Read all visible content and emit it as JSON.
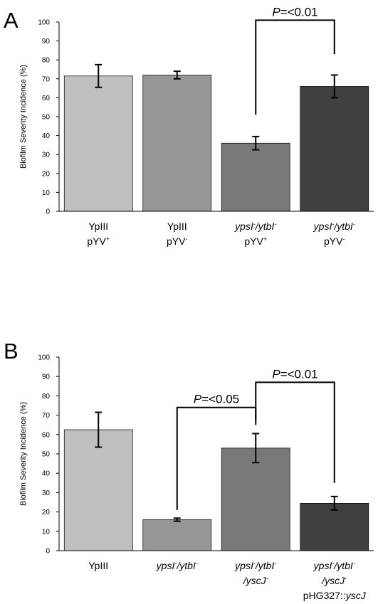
{
  "chart_data": [
    {
      "panel_label": "A",
      "type": "bar",
      "ylabel": "Biofilm Severity Incidence (%)",
      "ylim": [
        0,
        100
      ],
      "yticks": [
        0,
        10,
        20,
        30,
        40,
        50,
        60,
        70,
        80,
        90,
        100
      ],
      "grid": false,
      "categories": [
        {
          "lines": [
            [
              {
                "t": "YpIII"
              }
            ],
            [
              {
                "t": "pYV"
              },
              {
                "t": "+",
                "sup": true
              }
            ]
          ]
        },
        {
          "lines": [
            [
              {
                "t": "YpIII"
              }
            ],
            [
              {
                "t": "pYV"
              },
              {
                "t": "-",
                "sup": true
              }
            ]
          ]
        },
        {
          "lines": [
            [
              {
                "t": "ypsI",
                "i": true
              },
              {
                "t": "-",
                "sup": true,
                "i": true
              },
              {
                "t": "/ytbI",
                "i": true
              },
              {
                "t": "-",
                "sup": true,
                "i": true
              }
            ],
            [
              {
                "t": "pYV"
              },
              {
                "t": "+",
                "sup": true
              }
            ]
          ]
        },
        {
          "lines": [
            [
              {
                "t": "ypsI",
                "i": true
              },
              {
                "t": "-",
                "sup": true,
                "i": true
              },
              {
                "t": "/ytbI",
                "i": true
              },
              {
                "t": "-",
                "sup": true,
                "i": true
              }
            ],
            [
              {
                "t": "pYV"
              },
              {
                "t": "-",
                "sup": true
              }
            ]
          ]
        }
      ],
      "values": [
        71.5,
        72,
        36,
        66
      ],
      "errors": [
        6,
        2,
        3.5,
        6
      ],
      "colors": [
        "#c0c0c0",
        "#969696",
        "#787878",
        "#404040"
      ],
      "comparisons": [
        {
          "from": 2,
          "to": 3,
          "y_top": 101,
          "from_end": 51,
          "to_end": 83,
          "label_prefix": "P",
          "label_suffix": "=<0.01"
        }
      ]
    },
    {
      "panel_label": "B",
      "type": "bar",
      "ylabel": "Biofilm Severity Incidence (%)",
      "ylim": [
        0,
        100
      ],
      "yticks": [
        0,
        10,
        20,
        30,
        40,
        50,
        60,
        70,
        80,
        90,
        100
      ],
      "grid": false,
      "categories": [
        {
          "lines": [
            [
              {
                "t": "YpIII"
              }
            ]
          ]
        },
        {
          "lines": [
            [
              {
                "t": "ypsI",
                "i": true
              },
              {
                "t": "-",
                "sup": true,
                "i": true
              },
              {
                "t": "/ytbI",
                "i": true
              },
              {
                "t": "-",
                "sup": true,
                "i": true
              }
            ]
          ]
        },
        {
          "lines": [
            [
              {
                "t": "ypsI",
                "i": true
              },
              {
                "t": "-",
                "sup": true,
                "i": true
              },
              {
                "t": "/ytbI",
                "i": true
              },
              {
                "t": "-",
                "sup": true,
                "i": true
              }
            ],
            [
              {
                "t": "/yscJ",
                "i": true
              },
              {
                "t": "-",
                "sup": true,
                "i": true
              }
            ]
          ]
        },
        {
          "lines": [
            [
              {
                "t": "ypsI",
                "i": true
              },
              {
                "t": "-",
                "sup": true,
                "i": true
              },
              {
                "t": "/ytbI",
                "i": true
              },
              {
                "t": "-",
                "sup": true,
                "i": true
              }
            ],
            [
              {
                "t": "/yscJ",
                "i": true
              },
              {
                "t": "-",
                "sup": true,
                "i": true
              }
            ],
            [
              {
                "t": "pHG327::"
              },
              {
                "t": "yscJ",
                "i": true
              }
            ]
          ]
        }
      ],
      "values": [
        62.5,
        16,
        53,
        24.5
      ],
      "errors": [
        9,
        0.8,
        7.5,
        3.5
      ],
      "colors": [
        "#c0c0c0",
        "#969696",
        "#787878",
        "#404040"
      ],
      "comparisons": [
        {
          "from": 1,
          "to": 2,
          "y_top": 74,
          "from_end": 21,
          "to_end": 65,
          "label_prefix": "P",
          "label_suffix": "=<0.05"
        },
        {
          "from": 2,
          "to": 3,
          "y_top": 87,
          "from_end": 67,
          "to_end": 35,
          "label_prefix": "P",
          "label_suffix": "=<0.01"
        }
      ]
    }
  ]
}
